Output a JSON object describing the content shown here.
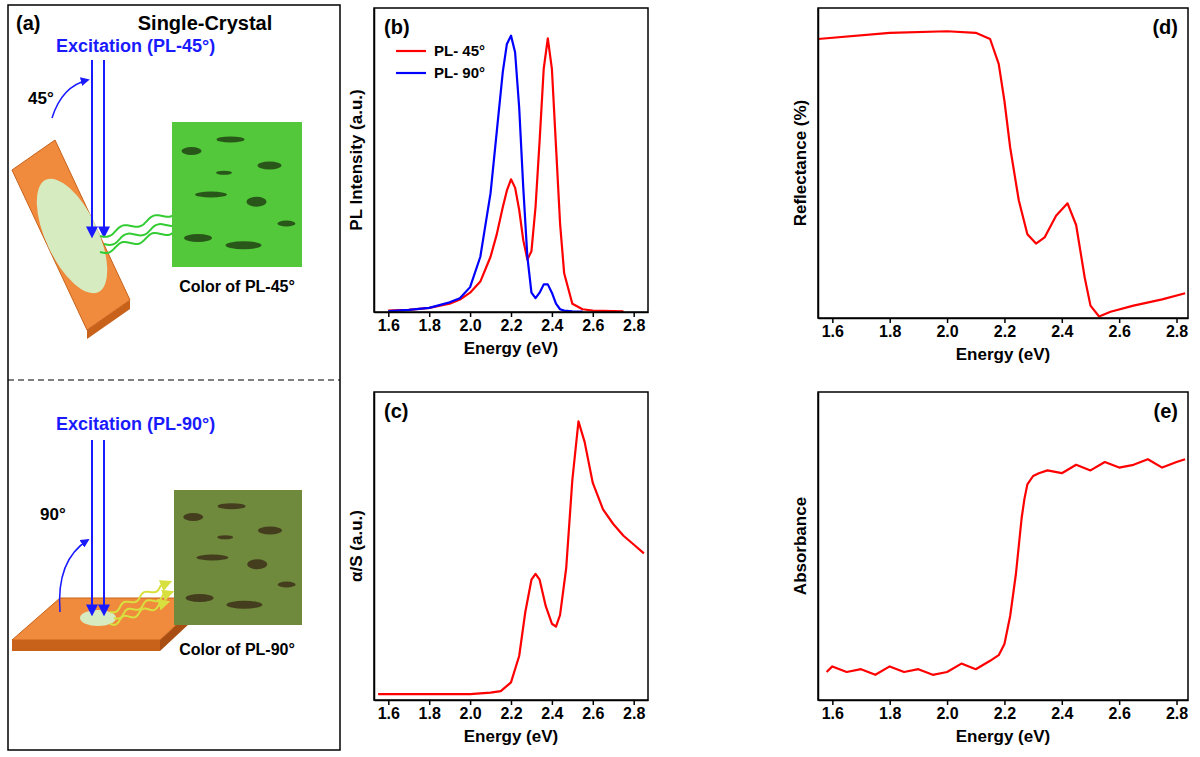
{
  "chart_data": [
    {
      "type": "line",
      "title": "(b)",
      "x_label": "Energy (eV)",
      "y_label": "PL Intensity (a.u.)",
      "x": [
        1.6,
        1.7,
        1.8,
        1.9,
        1.95,
        2.0,
        2.05,
        2.1,
        2.13,
        2.16,
        2.18,
        2.2,
        2.22,
        2.24,
        2.26,
        2.28,
        2.3,
        2.32,
        2.34,
        2.36,
        2.38,
        2.4,
        2.42,
        2.44,
        2.46,
        2.5,
        2.55,
        2.6,
        2.7,
        2.75
      ],
      "series": [
        {
          "name": "PL- 45°",
          "color": "#ff0000",
          "values": [
            0.005,
            0.008,
            0.015,
            0.03,
            0.045,
            0.07,
            0.11,
            0.2,
            0.28,
            0.38,
            0.44,
            0.48,
            0.45,
            0.37,
            0.26,
            0.19,
            0.22,
            0.38,
            0.62,
            0.88,
            0.99,
            0.88,
            0.6,
            0.32,
            0.14,
            0.03,
            0.01,
            0.005,
            0.003,
            0.002
          ]
        },
        {
          "name": "PL- 90°",
          "color": "#0000ff",
          "values": [
            0.003,
            0.008,
            0.015,
            0.035,
            0.05,
            0.09,
            0.2,
            0.43,
            0.65,
            0.87,
            0.97,
            1.0,
            0.94,
            0.74,
            0.45,
            0.2,
            0.07,
            0.05,
            0.07,
            0.1,
            0.1,
            0.07,
            0.03,
            0.01,
            0.005,
            0.002,
            0.001,
            null,
            null,
            null
          ]
        }
      ],
      "xlim": [
        1.53,
        2.87
      ],
      "xticks": [
        1.6,
        1.8,
        {
          "value": 2,
          "label": "2.0"
        },
        2.2,
        2.4,
        2.6,
        2.8
      ],
      "ylim": [
        0,
        1.1
      ],
      "yticks": [],
      "legend": "upper left",
      "tick_labels": "x"
    },
    {
      "type": "line",
      "title": "(c)",
      "x_label": "Energy (eV)",
      "y_label": "α/S (a.u.)",
      "x": [
        1.55,
        1.8,
        2.0,
        2.1,
        2.15,
        2.2,
        2.24,
        2.27,
        2.3,
        2.32,
        2.34,
        2.37,
        2.4,
        2.42,
        2.44,
        2.47,
        2.5,
        2.53,
        2.56,
        2.6,
        2.65,
        2.7,
        2.75,
        2.8,
        2.85
      ],
      "series": [
        {
          "color": "#ff0000",
          "values": [
            0.02,
            0.02,
            0.02,
            0.025,
            0.03,
            0.06,
            0.15,
            0.3,
            0.41,
            0.43,
            0.41,
            0.32,
            0.26,
            0.25,
            0.29,
            0.45,
            0.75,
            0.95,
            0.88,
            0.74,
            0.65,
            0.6,
            0.56,
            0.53,
            0.5
          ]
        }
      ],
      "xlim": [
        1.53,
        2.87
      ],
      "xticks": [
        1.6,
        1.8,
        {
          "value": 2,
          "label": "2.0"
        },
        2.2,
        2.4,
        2.6,
        2.8
      ],
      "ylim": [
        0,
        1.05
      ],
      "yticks": [],
      "tick_labels": "x"
    },
    {
      "type": "line",
      "title": "(d)",
      "x_label": "Energy (eV)",
      "y_label": "Reflectance (%)",
      "x": [
        1.55,
        1.8,
        2.0,
        2.1,
        2.15,
        2.18,
        2.2,
        2.22,
        2.25,
        2.28,
        2.31,
        2.34,
        2.38,
        2.42,
        2.45,
        2.48,
        2.5,
        2.53,
        2.57,
        2.65,
        2.75,
        2.83
      ],
      "series": [
        {
          "color": "#ff0000",
          "values": [
            0.9,
            0.92,
            0.925,
            0.92,
            0.9,
            0.82,
            0.7,
            0.55,
            0.38,
            0.27,
            0.24,
            0.26,
            0.33,
            0.37,
            0.3,
            0.13,
            0.04,
            0.005,
            0.02,
            0.04,
            0.06,
            0.08
          ]
        }
      ],
      "xlim": [
        1.55,
        2.84
      ],
      "xticks": [
        1.6,
        1.8,
        {
          "value": 2,
          "label": "2.0"
        },
        2.2,
        2.4,
        2.6,
        2.8
      ],
      "ylim": [
        0,
        1
      ],
      "yticks": [],
      "tick_labels": "x"
    },
    {
      "type": "line",
      "title": "(e)",
      "x_label": "Energy (eV)",
      "y_label": "Absorbance",
      "x": [
        1.58,
        1.6,
        1.65,
        1.7,
        1.75,
        1.8,
        1.85,
        1.9,
        1.95,
        2.0,
        2.05,
        2.1,
        2.15,
        2.18,
        2.2,
        2.22,
        2.24,
        2.25,
        2.26,
        2.27,
        2.28,
        2.3,
        2.32,
        2.35,
        2.4,
        2.45,
        2.5,
        2.55,
        2.6,
        2.65,
        2.7,
        2.75,
        2.8,
        2.83
      ],
      "series": [
        {
          "color": "#ff0000",
          "values": [
            0.1,
            0.12,
            0.1,
            0.11,
            0.09,
            0.12,
            0.1,
            0.11,
            0.09,
            0.1,
            0.13,
            0.11,
            0.14,
            0.16,
            0.2,
            0.3,
            0.45,
            0.55,
            0.65,
            0.72,
            0.77,
            0.8,
            0.81,
            0.82,
            0.81,
            0.84,
            0.82,
            0.85,
            0.83,
            0.84,
            0.86,
            0.83,
            0.85,
            0.86
          ]
        }
      ],
      "xlim": [
        1.55,
        2.84
      ],
      "xticks": [
        1.6,
        1.8,
        {
          "value": 2,
          "label": "2.0"
        },
        2.2,
        2.4,
        2.6,
        2.8
      ],
      "ylim": [
        0,
        1.1
      ],
      "yticks": [],
      "tick_labels": "x"
    }
  ],
  "diagram": {
    "label": "(a)",
    "title": "Single-Crystal",
    "panels": [
      {
        "excitation": "Excitation (PL-45°)",
        "angle": "45°",
        "caption": "Color of PL-45°"
      },
      {
        "excitation": "Excitation (PL-90°)",
        "angle": "90°",
        "caption": "Color of PL-90°"
      }
    ]
  }
}
